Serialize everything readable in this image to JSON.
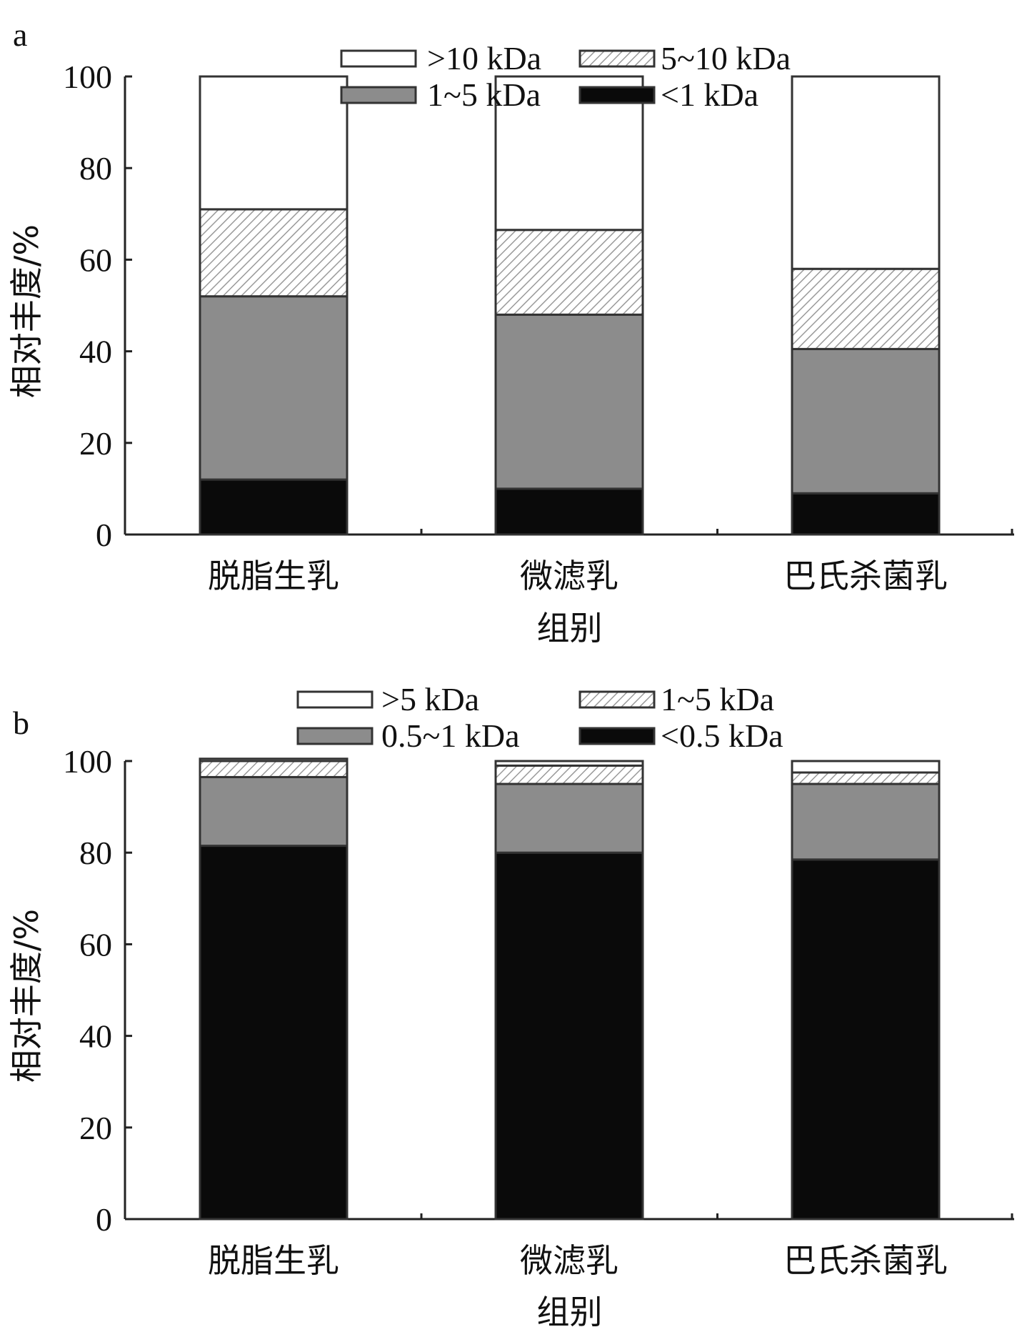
{
  "chart_data": [
    {
      "panel": "a",
      "type": "bar",
      "stacked": true,
      "categories": [
        "脱脂生乳",
        "微滤乳",
        "巴氏杀菌乳"
      ],
      "xlabel": "组别",
      "ylabel": "相对丰度/%",
      "ylim": [
        0,
        100
      ],
      "yticks": [
        0,
        20,
        40,
        60,
        80,
        100
      ],
      "legend_position": "top",
      "series": [
        {
          "name": "<1 kDa",
          "values": [
            12,
            10,
            9
          ],
          "fill": "#0a0a0a"
        },
        {
          "name": "1~5 kDa",
          "values": [
            40,
            38,
            31.5
          ],
          "fill": "#8c8c8c"
        },
        {
          "name": "5~10 kDa",
          "values": [
            19,
            18.5,
            17.5
          ],
          "fill": "hatch"
        },
        {
          "name": ">10 kDa",
          "values": [
            29,
            33.5,
            42
          ],
          "fill": "#ffffff"
        }
      ],
      "legend_order": [
        ">10 kDa",
        "5~10 kDa",
        "1~5 kDa",
        "<1 kDa"
      ]
    },
    {
      "panel": "b",
      "type": "bar",
      "stacked": true,
      "categories": [
        "脱脂生乳",
        "微滤乳",
        "巴氏杀菌乳"
      ],
      "xlabel": "组别",
      "ylabel": "相对丰度/%",
      "ylim": [
        0,
        100
      ],
      "yticks": [
        0,
        20,
        40,
        60,
        80,
        100
      ],
      "legend_position": "top",
      "series": [
        {
          "name": "<0.5 kDa",
          "values": [
            81.5,
            80,
            78.5
          ],
          "fill": "#0a0a0a"
        },
        {
          "name": "0.5~1 kDa",
          "values": [
            15,
            15,
            16.5
          ],
          "fill": "#8c8c8c"
        },
        {
          "name": "1~5 kDa",
          "values": [
            3.5,
            4,
            2.5
          ],
          "fill": "hatch"
        },
        {
          "name": ">5 kDa",
          "values": [
            0.5,
            1,
            2.5
          ],
          "fill": "#ffffff"
        }
      ],
      "legend_order": [
        ">5 kDa",
        "1~5 kDa",
        "0.5~1 kDa",
        "<0.5 kDa"
      ]
    }
  ]
}
